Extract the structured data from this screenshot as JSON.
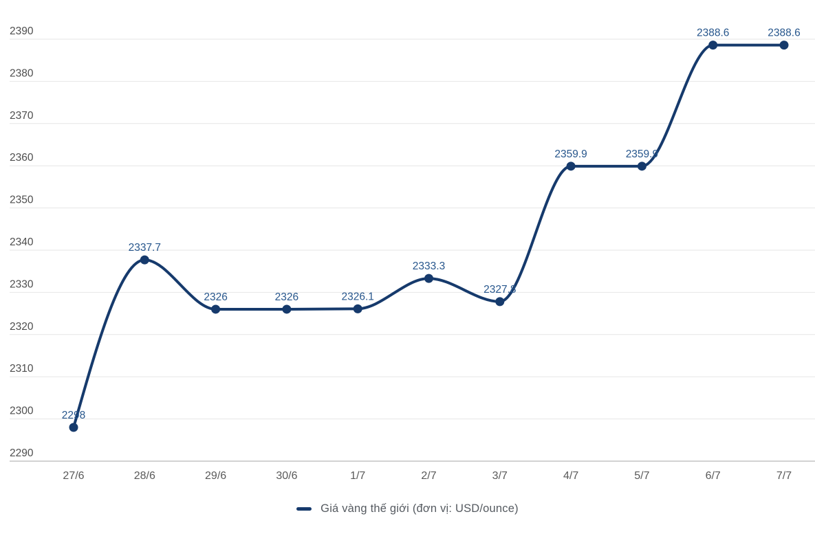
{
  "chart": {
    "background": "#ffffff",
    "line_color": "#163a6c",
    "point_color": "#163a6c",
    "point_label_color": "#27568c",
    "y_tick_color": "#4d4d4d",
    "x_tick_color": "#595959",
    "grid_color": "#e6e6e6",
    "axis_line_color": "#d2d2d2",
    "legend": {
      "label": "Giá vàng thế giới (đơn vị: USD/ounce)",
      "swatch_color": "#163a6c"
    }
  },
  "chart_data": {
    "type": "line",
    "title": "",
    "xlabel": "",
    "ylabel": "",
    "x": [
      "27/6",
      "28/6",
      "29/6",
      "30/6",
      "1/7",
      "2/7",
      "3/7",
      "4/7",
      "5/7",
      "6/7",
      "7/7"
    ],
    "series": [
      {
        "name": "Giá vàng thế giới (đơn vị: USD/ounce)",
        "values": [
          2298,
          2337.7,
          2326,
          2326,
          2326.1,
          2333.3,
          2327.8,
          2359.9,
          2359.9,
          2388.6,
          2388.6
        ]
      }
    ],
    "point_labels": [
      "2298",
      "2337.7",
      "2326",
      "2326",
      "2326.1",
      "2333.3",
      "2327.8",
      "2359.9",
      "2359.9",
      "2388.6",
      "2388.6"
    ],
    "ylim": [
      2290,
      2390
    ],
    "yticks": [
      2290,
      2300,
      2310,
      2320,
      2330,
      2340,
      2350,
      2360,
      2370,
      2380,
      2390
    ],
    "curve": "monotone",
    "grid": "horizontal",
    "legend_position": "bottom"
  }
}
